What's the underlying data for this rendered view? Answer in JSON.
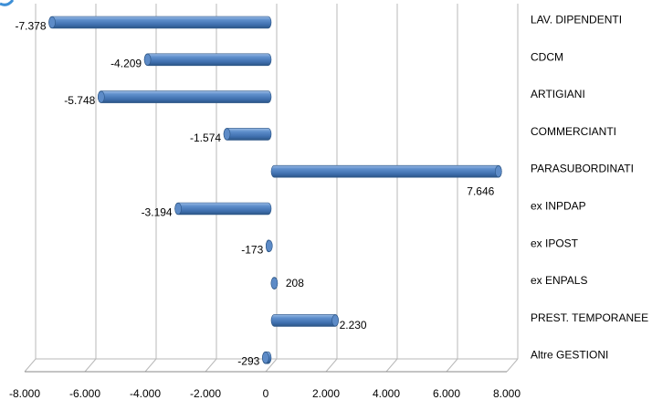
{
  "chart_data": {
    "type": "bar",
    "orientation": "horizontal",
    "style": "3d-cylinder",
    "grid": true,
    "bar_color": "#4a7ebb",
    "bar_dark": "#2c5585",
    "bar_light": "#9bbbe4",
    "grid_color": "#b8b8b8",
    "categories": [
      "LAV. DIPENDENTI",
      "CDCM",
      "ARTIGIANI",
      "COMMERCIANTI",
      "PARASUBORDINATI",
      "ex INPDAP",
      "ex IPOST",
      "ex ENPALS",
      "PREST. TEMPORANEE",
      "Altre GESTIONI"
    ],
    "values": [
      -7378,
      -4209,
      -5748,
      -1574,
      7646,
      -3194,
      -173,
      208,
      2230,
      -293
    ],
    "value_labels": [
      "-7.378",
      "-4.209",
      "-5.748",
      "-1.574",
      "7.646",
      "-3.194",
      "-173",
      "208",
      "2.230",
      "-293"
    ],
    "xlim": [
      -8000,
      8000
    ],
    "x_ticks": [
      -8000,
      -6000,
      -4000,
      -2000,
      0,
      2000,
      4000,
      6000,
      8000
    ],
    "x_tick_labels": [
      "-8.000",
      "-6.000",
      "-4.000",
      "-2.000",
      "0",
      "2.000",
      "4.000",
      "6.000",
      "8.000"
    ],
    "title": "",
    "xlabel": "",
    "ylabel": ""
  }
}
